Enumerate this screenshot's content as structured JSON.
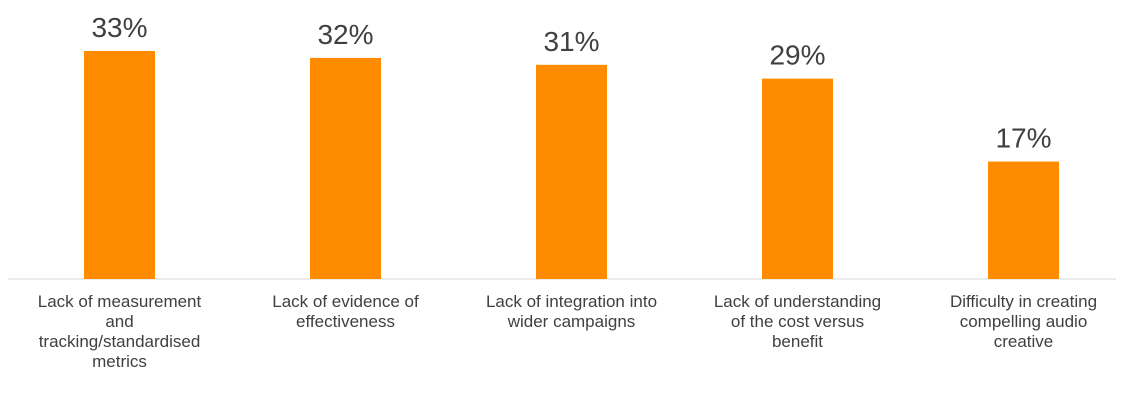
{
  "chart_data": {
    "type": "bar",
    "categories": [
      "Lack of measurement and tracking/standardised metrics",
      "Lack of evidence of effectiveness",
      "Lack of integration into wider campaigns",
      "Lack of understanding of the cost versus benefit",
      "Difficulty in creating compelling audio creative"
    ],
    "category_label_lines": [
      [
        "Lack of measurement",
        "and",
        "tracking/standardised",
        "metrics"
      ],
      [
        "Lack of evidence of",
        "effectiveness"
      ],
      [
        "Lack of integration into",
        "wider campaigns"
      ],
      [
        "Lack of understanding",
        "of the cost versus",
        "benefit"
      ],
      [
        "Difficulty in creating",
        "compelling audio",
        "creative"
      ]
    ],
    "values": [
      33,
      32,
      31,
      29,
      17
    ],
    "value_labels": [
      "33%",
      "32%",
      "31%",
      "29%",
      "17%"
    ],
    "unit": "%",
    "ylim": [
      0,
      33
    ],
    "grid": false,
    "legend": "none",
    "colors": {
      "bar": "#FF8C00",
      "text": "#404040",
      "axis": "#d9d9d9"
    }
  }
}
